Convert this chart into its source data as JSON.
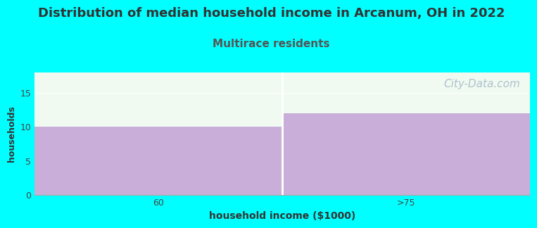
{
  "title": "Distribution of median household income in Arcanum, OH in 2022",
  "subtitle": "Multirace residents",
  "categories": [
    "60",
    ">75"
  ],
  "values": [
    10,
    12
  ],
  "bar_color": "#c8aed8",
  "background_color": "#00ffff",
  "plot_bg_color": "#f0faf0",
  "xlabel": "household income ($1000)",
  "ylabel": "households",
  "ylim": [
    0,
    18
  ],
  "yticks": [
    0,
    5,
    10,
    15
  ],
  "title_fontsize": 13,
  "title_color": "#333333",
  "subtitle_fontsize": 11,
  "subtitle_color": "#555555",
  "xlabel_fontsize": 10,
  "ylabel_fontsize": 9,
  "tick_fontsize": 9,
  "watermark": "City-Data.com",
  "watermark_color": "#a0b8c8",
  "watermark_fontsize": 11,
  "gap_color": "#ffffff"
}
